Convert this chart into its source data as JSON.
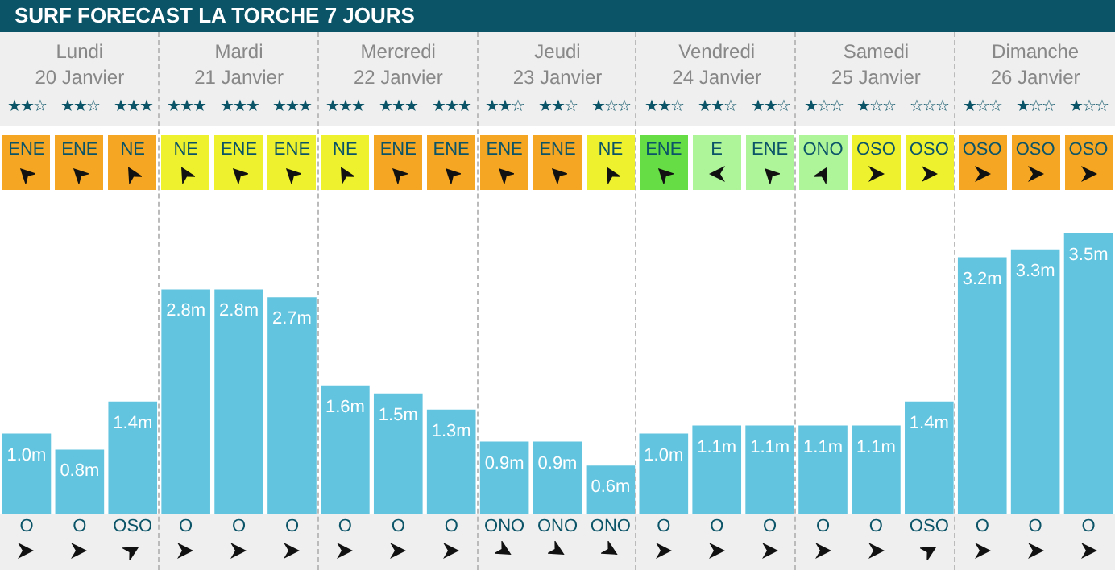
{
  "chart_data": {
    "type": "bar",
    "title": "SURF FORECAST LA TORCHE 7 JOURS",
    "categories": [
      null,
      null,
      null,
      null,
      null,
      null,
      null,
      null,
      null,
      null,
      null,
      null,
      null,
      null,
      null,
      null,
      null,
      null,
      null,
      null,
      null
    ],
    "values": [
      1.0,
      0.8,
      1.4,
      2.8,
      2.8,
      2.7,
      1.6,
      1.5,
      1.3,
      0.9,
      0.9,
      0.6,
      1.0,
      1.1,
      1.1,
      1.1,
      1.1,
      1.4,
      3.2,
      3.3,
      3.5
    ],
    "value_labels": [
      "1.0m",
      "0.8m",
      "1.4m",
      "2.8m",
      "2.8m",
      "2.7m",
      "1.6m",
      "1.5m",
      "1.3m",
      "0.9m",
      "0.9m",
      "0.6m",
      "1.0m",
      "1.1m",
      "1.1m",
      "1.1m",
      "1.1m",
      "1.4m",
      "3.2m",
      "3.3m",
      "3.5m"
    ],
    "color": "#63c4df",
    "annotations": [
      "Lundi",
      "Mardi",
      "Mercredi",
      "Jeudi",
      "Vendredi",
      "Samedi",
      "Dimanche",
      "20 Janvier",
      "21 Janvier",
      "22 Janvier",
      "23 Janvier",
      "24 Janvier",
      "25 Janvier",
      "26 Janvier",
      "★★☆",
      "★★☆",
      "★★★",
      "★★★",
      "★★★",
      "★★★",
      "★★★",
      "★★★",
      "★★★",
      "★★☆",
      "★★☆",
      "★☆☆",
      "★★☆",
      "★★☆",
      "★★☆",
      "★☆☆",
      "★☆☆",
      "☆☆☆",
      "★☆☆",
      "★☆☆",
      "★☆☆",
      "ENE",
      "ENE",
      "NE",
      "NE",
      "ENE",
      "ENE",
      "NE",
      "ENE",
      "ENE",
      "ENE",
      "ENE",
      "NE",
      "ENE",
      "E",
      "ENE",
      "ONO",
      "OSO",
      "OSO",
      "OSO",
      "OSO",
      "OSO",
      "O",
      "O",
      "OSO",
      "O",
      "O",
      "O",
      "O",
      "O",
      "O",
      "ONO",
      "ONO",
      "ONO",
      "O",
      "O",
      "O",
      "O",
      "O",
      "OSO",
      "O",
      "O",
      "O"
    ]
  }
}
